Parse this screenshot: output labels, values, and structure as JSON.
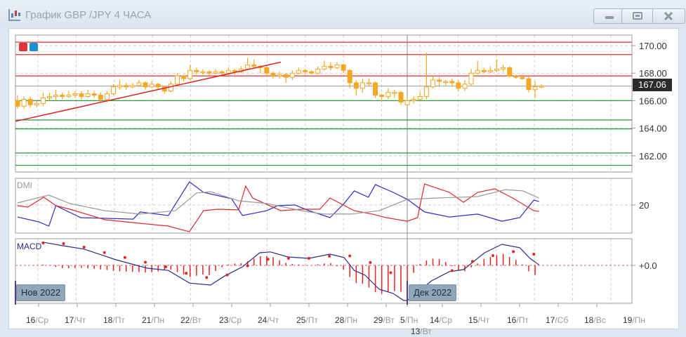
{
  "window": {
    "title": "График GBP /JPY  4 ЧАСА",
    "buttons": [
      "minimize",
      "maximize",
      "close"
    ]
  },
  "colors": {
    "bull_candle": "#ffffff",
    "candle": "#f5a623",
    "resistance": "#e03030",
    "support": "#2e9a3a",
    "trendline": "#e02020",
    "dmi_plus": "#2a2ad0",
    "dmi_minus": "#e02a2a",
    "adx": "#999999",
    "macd": "#2a2a8a",
    "signal": "#e82020"
  },
  "legend_swatches": [
    "#e0343a",
    "#1f8fd6"
  ],
  "chart_data": [
    {
      "type": "candlestick",
      "symbol": "GBP /JPY",
      "timeframe": "4 ЧАСА",
      "yticks": [
        "170.00",
        "168.00",
        "166.00",
        "164.00",
        "162.00"
      ],
      "ylim": [
        160.8,
        170.8
      ],
      "current_price": "167.06",
      "grid": true,
      "x_labels": [
        {
          "day": "16",
          "wd": "/Ср"
        },
        {
          "day": "17",
          "wd": "/Чт"
        },
        {
          "day": "18",
          "wd": "/Пт"
        },
        {
          "day": "21",
          "wd": "/Пн"
        },
        {
          "day": "22",
          "wd": "/Вт"
        },
        {
          "day": "23",
          "wd": "/Ср"
        },
        {
          "day": "24",
          "wd": "/Чт"
        },
        {
          "day": "25",
          "wd": "/Пт"
        },
        {
          "day": "28",
          "wd": "/Пн"
        },
        {
          "day": "29",
          "wd": "/Вт"
        },
        {
          "day": "5",
          "wd": "/Пн"
        },
        {
          "day": "13",
          "wd": "/Вт"
        },
        {
          "day": "14",
          "wd": "/Ср"
        },
        {
          "day": "15",
          "wd": "/Чт"
        },
        {
          "day": "16",
          "wd": "/Пт"
        },
        {
          "day": "17",
          "wd": "/Сб"
        },
        {
          "day": "18",
          "wd": "/Вс"
        },
        {
          "day": "19",
          "wd": "/Пн"
        }
      ],
      "month_labels": [
        "Нов 2022",
        "Дек 2022"
      ],
      "resistance_levels": [
        170.25,
        169.35,
        167.8
      ],
      "support_levels": [
        166.0,
        164.6,
        163.95,
        162.2,
        161.3
      ],
      "trendline": [
        [
          0,
          164.5
        ],
        [
          41,
          168.8
        ]
      ],
      "ohlc": [
        [
          166.0,
          166.4,
          165.4,
          165.6
        ],
        [
          165.6,
          166.3,
          165.4,
          166.1
        ],
        [
          166.1,
          166.3,
          165.5,
          165.7
        ],
        [
          165.7,
          166.0,
          165.5,
          165.8
        ],
        [
          165.8,
          166.6,
          165.6,
          166.2
        ],
        [
          166.2,
          166.6,
          166.0,
          166.3
        ],
        [
          166.3,
          166.8,
          166.0,
          166.4
        ],
        [
          166.4,
          166.6,
          166.1,
          166.3
        ],
        [
          166.3,
          166.7,
          166.2,
          166.4
        ],
        [
          166.4,
          166.7,
          166.2,
          166.5
        ],
        [
          166.5,
          166.7,
          166.1,
          166.3
        ],
        [
          166.3,
          166.8,
          166.2,
          166.5
        ],
        [
          166.5,
          166.7,
          166.2,
          166.4
        ],
        [
          166.4,
          166.6,
          165.9,
          166.1
        ],
        [
          166.1,
          166.7,
          165.9,
          166.5
        ],
        [
          166.5,
          167.2,
          166.4,
          167.0
        ],
        [
          167.0,
          167.5,
          166.8,
          167.1
        ],
        [
          167.1,
          167.3,
          166.8,
          167.0
        ],
        [
          167.0,
          167.3,
          166.9,
          167.1
        ],
        [
          167.1,
          167.5,
          167.0,
          167.3
        ],
        [
          167.3,
          167.4,
          166.8,
          167.0
        ],
        [
          167.0,
          167.4,
          166.9,
          167.2
        ],
        [
          167.2,
          167.3,
          166.8,
          167.0
        ],
        [
          167.0,
          167.1,
          166.5,
          166.7
        ],
        [
          166.7,
          167.4,
          166.6,
          167.2
        ],
        [
          167.2,
          168.0,
          167.1,
          167.8
        ],
        [
          167.8,
          167.9,
          167.4,
          167.6
        ],
        [
          167.6,
          168.6,
          167.5,
          168.2
        ],
        [
          168.2,
          168.4,
          167.9,
          168.1
        ],
        [
          168.1,
          168.3,
          167.9,
          168.1
        ],
        [
          168.1,
          168.2,
          167.8,
          168.0
        ],
        [
          168.0,
          168.3,
          167.9,
          168.1
        ],
        [
          168.1,
          168.2,
          167.8,
          168.0
        ],
        [
          168.0,
          168.4,
          167.9,
          168.2
        ],
        [
          168.2,
          168.3,
          167.9,
          168.1
        ],
        [
          168.1,
          168.5,
          168.0,
          168.3
        ],
        [
          168.3,
          169.1,
          168.2,
          168.6
        ],
        [
          168.6,
          169.0,
          168.3,
          168.5
        ],
        [
          168.5,
          168.6,
          168.0,
          168.4
        ],
        [
          168.4,
          168.5,
          167.8,
          168.0
        ],
        [
          168.0,
          168.1,
          167.6,
          167.8
        ],
        [
          167.8,
          168.1,
          167.6,
          167.9
        ],
        [
          167.9,
          168.0,
          167.3,
          167.7
        ],
        [
          167.7,
          168.2,
          167.5,
          168.0
        ],
        [
          168.0,
          168.4,
          167.9,
          168.2
        ],
        [
          168.2,
          168.3,
          167.9,
          168.1
        ],
        [
          168.1,
          168.2,
          167.9,
          168.0
        ],
        [
          168.0,
          168.5,
          167.9,
          168.3
        ],
        [
          168.3,
          168.9,
          168.2,
          168.5
        ],
        [
          168.5,
          168.8,
          168.2,
          168.4
        ],
        [
          168.4,
          168.8,
          168.3,
          168.6
        ],
        [
          168.6,
          168.7,
          168.0,
          168.2
        ],
        [
          168.2,
          168.3,
          166.9,
          167.3
        ],
        [
          167.3,
          167.5,
          166.4,
          166.9
        ],
        [
          166.9,
          167.6,
          166.6,
          167.3
        ],
        [
          167.3,
          167.6,
          167.0,
          167.3
        ],
        [
          167.3,
          167.4,
          166.2,
          166.4
        ],
        [
          166.4,
          166.5,
          165.9,
          166.3
        ],
        [
          166.3,
          166.9,
          166.1,
          166.6
        ],
        [
          166.6,
          166.8,
          166.2,
          166.6
        ],
        [
          166.6,
          166.7,
          165.7,
          165.9
        ],
        [
          165.7,
          166.3,
          165.6,
          166.0
        ],
        [
          166.0,
          166.3,
          165.8,
          166.1
        ],
        [
          166.1,
          166.6,
          166.0,
          166.3
        ],
        [
          166.3,
          169.5,
          166.1,
          167.0
        ],
        [
          167.0,
          167.8,
          166.9,
          167.5
        ],
        [
          167.5,
          167.7,
          167.0,
          167.4
        ],
        [
          167.4,
          167.5,
          167.1,
          167.4
        ],
        [
          167.4,
          167.6,
          167.0,
          167.3
        ],
        [
          167.3,
          167.5,
          166.7,
          166.9
        ],
        [
          166.9,
          167.5,
          166.7,
          167.2
        ],
        [
          167.2,
          168.3,
          167.1,
          168.0
        ],
        [
          168.0,
          168.9,
          167.9,
          168.2
        ],
        [
          168.2,
          168.4,
          168.0,
          168.1
        ],
        [
          168.1,
          168.5,
          168.0,
          168.2
        ],
        [
          168.2,
          169.0,
          168.1,
          168.3
        ],
        [
          168.3,
          168.6,
          168.1,
          168.4
        ],
        [
          168.4,
          168.5,
          167.7,
          167.8
        ],
        [
          167.8,
          167.9,
          167.6,
          167.7
        ],
        [
          167.7,
          167.9,
          167.5,
          167.6
        ],
        [
          167.6,
          167.8,
          166.6,
          166.8
        ],
        [
          166.8,
          167.4,
          166.2,
          167.0
        ],
        [
          167.0,
          167.2,
          166.9,
          167.06
        ]
      ]
    },
    {
      "type": "line",
      "title": "DMI",
      "yticks": [
        "20"
      ],
      "series": [
        {
          "key": "plus",
          "points": [
            [
              0,
              14.3
            ],
            [
              3.3,
              12
            ],
            [
              4.9,
              10
            ],
            [
              6,
              19.7
            ],
            [
              9.9,
              14
            ],
            [
              18.1,
              13.3
            ],
            [
              19.2,
              16.7
            ],
            [
              23.6,
              15
            ],
            [
              26.9,
              31
            ],
            [
              29.1,
              26
            ],
            [
              33.5,
              23
            ],
            [
              35.2,
              15
            ],
            [
              39,
              17.3
            ],
            [
              40.7,
              19.7
            ],
            [
              43.4,
              20
            ],
            [
              45.6,
              17.3
            ],
            [
              48.9,
              14
            ],
            [
              51.1,
              20.7
            ],
            [
              52.7,
              26.7
            ],
            [
              54.9,
              23.7
            ],
            [
              56,
              29.7
            ],
            [
              58.8,
              26
            ],
            [
              61,
              22.7
            ],
            [
              63.7,
              16.7
            ],
            [
              67.6,
              14.3
            ],
            [
              72,
              15.7
            ],
            [
              75.8,
              12.3
            ],
            [
              78.6,
              14
            ],
            [
              80.8,
              22.3
            ],
            [
              81.6,
              21.7
            ]
          ]
        },
        {
          "key": "minus",
          "points": [
            [
              0,
              19.7
            ],
            [
              1.6,
              19
            ],
            [
              4.1,
              23.7
            ],
            [
              6,
              19.7
            ],
            [
              8.2,
              18
            ],
            [
              13.7,
              13
            ],
            [
              19.2,
              11.3
            ],
            [
              23.6,
              10
            ],
            [
              26.9,
              7.3
            ],
            [
              29.1,
              17.3
            ],
            [
              31.3,
              18
            ],
            [
              34.6,
              17.7
            ],
            [
              35.7,
              29
            ],
            [
              36.8,
              23.3
            ],
            [
              41.2,
              17.3
            ],
            [
              44.5,
              18
            ],
            [
              47.3,
              18
            ],
            [
              48.9,
              23.3
            ],
            [
              52.7,
              17.3
            ],
            [
              55.5,
              15.7
            ],
            [
              57.7,
              14
            ],
            [
              61,
              12.3
            ],
            [
              62.6,
              14
            ],
            [
              63.7,
              30
            ],
            [
              67.6,
              26
            ],
            [
              69.8,
              21.3
            ],
            [
              72,
              26
            ],
            [
              74.7,
              27.7
            ],
            [
              77.5,
              23.3
            ],
            [
              80.8,
              17.3
            ],
            [
              81.6,
              17
            ]
          ]
        },
        {
          "key": "adx",
          "points": [
            [
              0,
              21
            ],
            [
              4.9,
              24.7
            ],
            [
              8.2,
              20.7
            ],
            [
              13.7,
              17.3
            ],
            [
              19.2,
              15.7
            ],
            [
              24.7,
              17.3
            ],
            [
              28,
              25.7
            ],
            [
              30.2,
              26.3
            ],
            [
              34.6,
              22
            ],
            [
              39,
              20.7
            ],
            [
              44.5,
              17.3
            ],
            [
              47.8,
              15.7
            ],
            [
              52.2,
              15.7
            ],
            [
              56.6,
              17.3
            ],
            [
              61,
              22.7
            ],
            [
              65.4,
              23.3
            ],
            [
              72,
              24
            ],
            [
              76.4,
              27.3
            ],
            [
              79.1,
              26.7
            ],
            [
              81.6,
              23.3
            ]
          ]
        }
      ]
    },
    {
      "type": "line",
      "title": "MACD",
      "yticks": [
        "+0.0"
      ],
      "series": [
        {
          "key": "macd",
          "points": [
            [
              4.1,
              0.82
            ],
            [
              7.1,
              0.7
            ],
            [
              10.4,
              0.58
            ],
            [
              13.7,
              0.33
            ],
            [
              15.4,
              0.2
            ],
            [
              20.3,
              -0.1
            ],
            [
              23.6,
              -0.18
            ],
            [
              26.9,
              -0.63
            ],
            [
              30.2,
              -0.7
            ],
            [
              32.4,
              -0.38
            ],
            [
              35.2,
              -0.05
            ],
            [
              37.9,
              0.45
            ],
            [
              39.6,
              0.48
            ],
            [
              42.3,
              0.3
            ],
            [
              45.6,
              0.25
            ],
            [
              48.9,
              0.4
            ],
            [
              51.1,
              0.28
            ],
            [
              52.7,
              -0.18
            ],
            [
              54.4,
              -0.35
            ],
            [
              56.6,
              -0.85
            ],
            [
              58.8,
              -1.0
            ],
            [
              60.4,
              -1.25
            ],
            [
              61,
              -1.25
            ],
            [
              64.8,
              -0.55
            ],
            [
              67.6,
              -0.22
            ],
            [
              69.8,
              -0.15
            ],
            [
              73.1,
              0.45
            ],
            [
              75.8,
              0.75
            ],
            [
              78.6,
              0.63
            ],
            [
              80.2,
              0.25
            ],
            [
              81.6,
              0.02
            ]
          ]
        },
        {
          "key": "signal",
          "points": [
            [
              4.1,
              0.8
            ],
            [
              7.1,
              0.78
            ],
            [
              10.4,
              0.65
            ],
            [
              13.7,
              0.45
            ],
            [
              15.9,
              0.33
            ],
            [
              19.2,
              0.15
            ],
            [
              22.5,
              0
            ],
            [
              25.8,
              -0.25
            ],
            [
              29.1,
              -0.43
            ],
            [
              31.3,
              -0.43
            ],
            [
              33.5,
              -0.3
            ],
            [
              35.7,
              -0.05
            ],
            [
              37.9,
              0.2
            ],
            [
              41.2,
              0.25
            ],
            [
              45.6,
              0.25
            ],
            [
              48.9,
              0.33
            ],
            [
              51.1,
              0.4
            ],
            [
              53.3,
              0.25
            ],
            [
              55.5,
              0.08
            ],
            [
              57.7,
              -0.18
            ],
            [
              59.9,
              -0.43
            ],
            [
              61,
              -0.8
            ],
            [
              63.2,
              -0.93
            ],
            [
              65.9,
              -0.6
            ],
            [
              68.7,
              -0.05
            ],
            [
              72,
              0.2
            ],
            [
              75.3,
              0.4
            ],
            [
              78.6,
              0.53
            ],
            [
              80.2,
              0.45
            ],
            [
              81.6,
              0.33
            ]
          ]
        }
      ]
    }
  ]
}
